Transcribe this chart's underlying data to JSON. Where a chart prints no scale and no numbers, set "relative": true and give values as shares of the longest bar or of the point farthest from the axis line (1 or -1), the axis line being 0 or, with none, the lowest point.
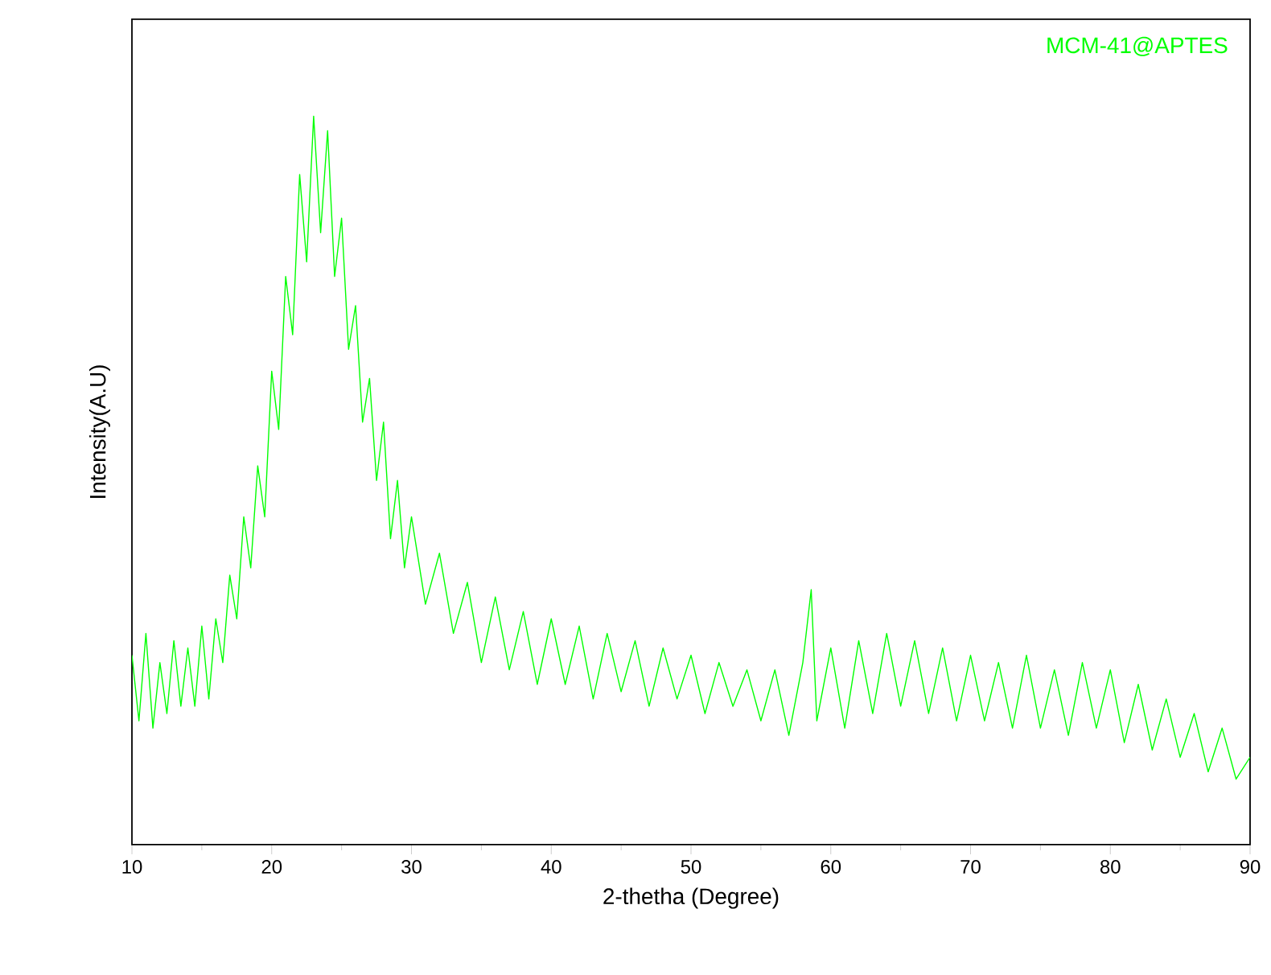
{
  "chart_data": {
    "type": "line",
    "xlabel": "2-thetha (Degree)",
    "ylabel": "Intensity(A.U)",
    "relative": true,
    "tick_labels": "x",
    "legend": "top right",
    "marker": "none",
    "line_style": "solid",
    "xlim": [
      10,
      90
    ],
    "xticks": [
      10,
      20,
      30,
      40,
      50,
      60,
      70,
      80,
      90
    ],
    "series": [
      {
        "name": "MCM-41@APTES",
        "color": "#00ff00",
        "x": [
          10,
          10.5,
          11,
          11.5,
          12,
          12.5,
          13,
          13.5,
          14,
          14.5,
          15,
          15.5,
          16,
          16.5,
          17,
          17.5,
          18,
          18.5,
          19,
          19.5,
          20,
          20.5,
          21,
          21.5,
          22,
          22.5,
          23,
          23.5,
          24,
          24.5,
          25,
          25.5,
          26,
          26.5,
          27,
          27.5,
          28,
          28.5,
          29,
          29.5,
          30,
          31,
          32,
          33,
          34,
          35,
          36,
          37,
          38,
          39,
          40,
          41,
          42,
          43,
          44,
          45,
          46,
          47,
          48,
          49,
          50,
          51,
          52,
          53,
          54,
          55,
          56,
          57,
          58,
          58.6,
          59,
          60,
          61,
          62,
          63,
          64,
          65,
          66,
          67,
          68,
          69,
          70,
          71,
          72,
          73,
          74,
          75,
          76,
          77,
          78,
          79,
          80,
          81,
          82,
          83,
          84,
          85,
          86,
          87,
          88,
          89,
          90
        ],
        "values": [
          0.26,
          0.17,
          0.29,
          0.16,
          0.25,
          0.18,
          0.28,
          0.19,
          0.27,
          0.19,
          0.3,
          0.2,
          0.31,
          0.25,
          0.37,
          0.31,
          0.45,
          0.38,
          0.52,
          0.45,
          0.65,
          0.57,
          0.78,
          0.7,
          0.92,
          0.8,
          1.0,
          0.84,
          0.98,
          0.78,
          0.86,
          0.68,
          0.74,
          0.58,
          0.64,
          0.5,
          0.58,
          0.42,
          0.5,
          0.38,
          0.45,
          0.33,
          0.4,
          0.29,
          0.36,
          0.25,
          0.34,
          0.24,
          0.32,
          0.22,
          0.31,
          0.22,
          0.3,
          0.2,
          0.29,
          0.21,
          0.28,
          0.19,
          0.27,
          0.2,
          0.26,
          0.18,
          0.25,
          0.19,
          0.24,
          0.17,
          0.24,
          0.15,
          0.25,
          0.35,
          0.17,
          0.27,
          0.16,
          0.28,
          0.18,
          0.29,
          0.19,
          0.28,
          0.18,
          0.27,
          0.17,
          0.26,
          0.17,
          0.25,
          0.16,
          0.26,
          0.16,
          0.24,
          0.15,
          0.25,
          0.16,
          0.24,
          0.14,
          0.22,
          0.13,
          0.2,
          0.12,
          0.18,
          0.1,
          0.16,
          0.09,
          0.12
        ]
      }
    ]
  }
}
